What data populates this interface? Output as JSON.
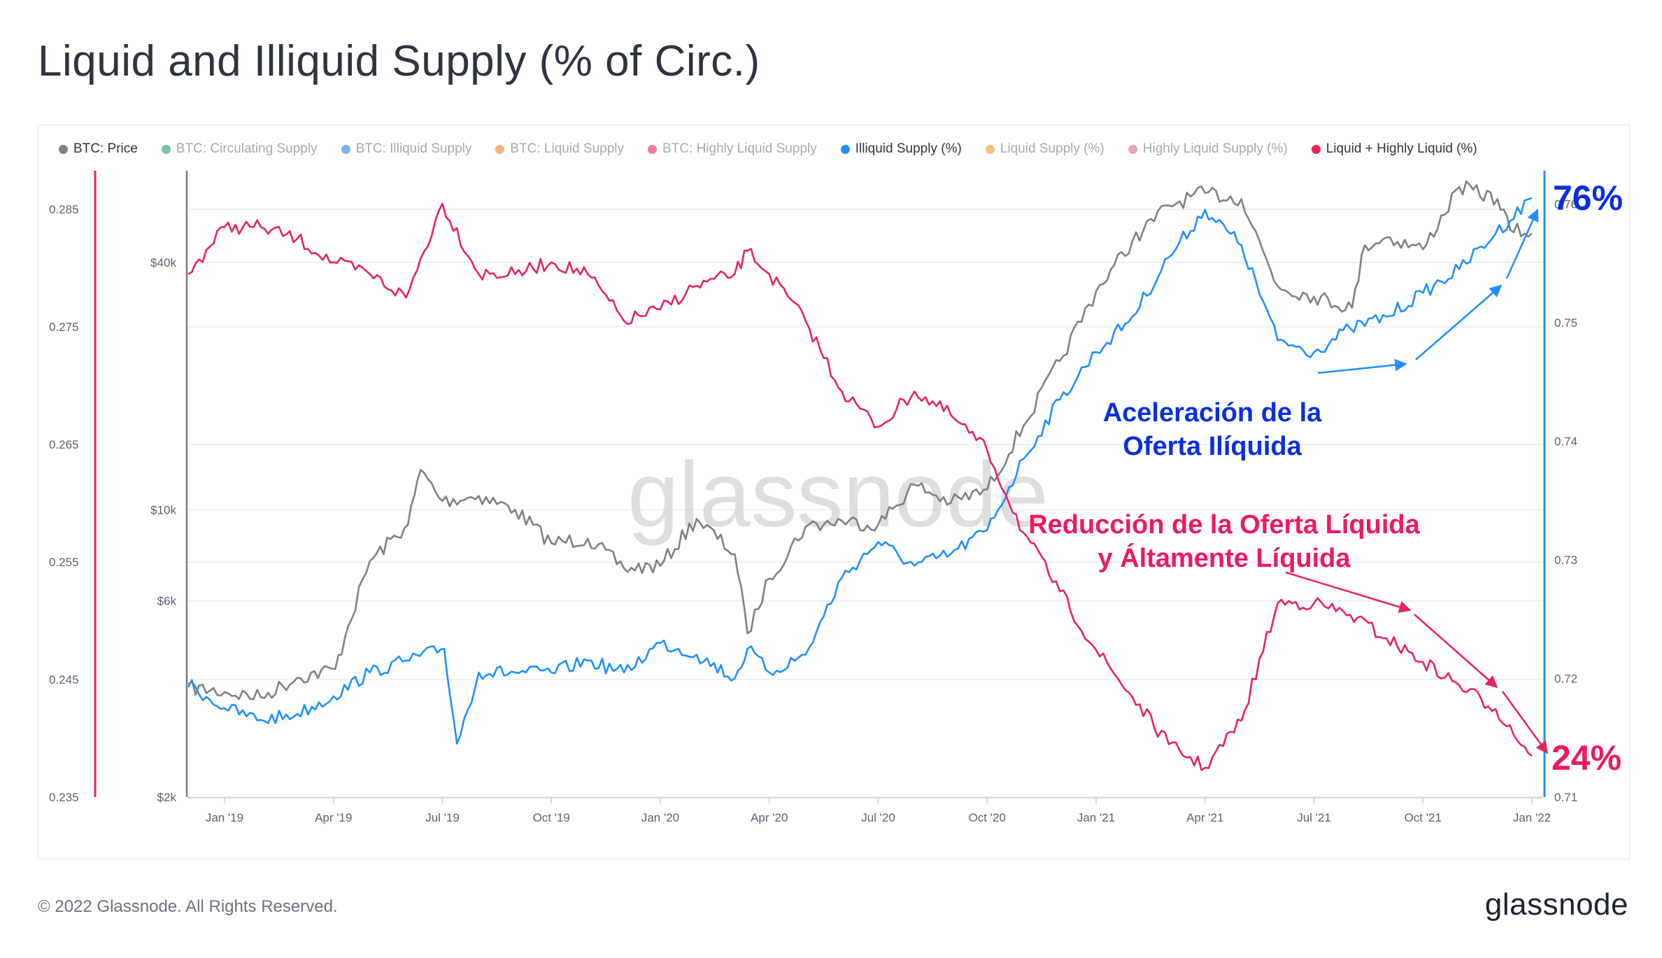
{
  "page": {
    "title": "Liquid and Illiquid Supply (% of Circ.)",
    "copyright": "© 2022 Glassnode. All Rights Reserved.",
    "logo": "glassnode",
    "watermark": "glassnode"
  },
  "legend": [
    {
      "label": "BTC: Price",
      "color": "#808080",
      "active": true
    },
    {
      "label": "BTC: Circulating Supply",
      "color": "#1a9e5c",
      "active": false
    },
    {
      "label": "BTC: Illiquid Supply",
      "color": "#2b7de9",
      "active": false
    },
    {
      "label": "BTC: Liquid Supply",
      "color": "#f07b1e",
      "active": false
    },
    {
      "label": "BTC: Highly Liquid Supply",
      "color": "#e8245b",
      "active": false
    },
    {
      "label": "Illiquid Supply (%)",
      "color": "#1e90ff",
      "active": true
    },
    {
      "label": "Liquid Supply (%)",
      "color": "#f59a2a",
      "active": false
    },
    {
      "label": "Highly Liquid Supply (%)",
      "color": "#e0608a",
      "active": false
    },
    {
      "label": "Liquid + Highly Liquid (%)",
      "color": "#e8245b",
      "active": true
    }
  ],
  "colors": {
    "price": "#808080",
    "illiquid": "#1e90ff",
    "liquid": "#e8245b",
    "annotation_blue": "#0a2fe0",
    "annotation_red": "#ec1a63",
    "grid": "#ebedf0",
    "tick": "#5b6170"
  },
  "chart_data": {
    "type": "line",
    "x_axis": {
      "ticks": [
        "Jan '19",
        "Apr '19",
        "Jul '19",
        "Oct '19",
        "Jan '20",
        "Apr '20",
        "Jul '20",
        "Oct '20",
        "Jan '21",
        "Apr '21",
        "Jul '21",
        "Oct '21",
        "Jan '22"
      ],
      "range": [
        "Dec '18",
        "Jan '22"
      ]
    },
    "y_axes": {
      "left": {
        "series": "Liquid + Highly Liquid (%)",
        "ticks": [
          "0.285",
          "0.275",
          "0.265",
          "0.255",
          "0.245",
          "0.235"
        ],
        "range": [
          0.235,
          0.289
        ]
      },
      "price": {
        "series": "BTC: Price",
        "scale": "log",
        "ticks": [
          "$40k",
          "$10k",
          "$6k",
          "$2k"
        ],
        "tick_values": [
          40000,
          10000,
          6000,
          2000
        ],
        "range": [
          2000,
          70000
        ]
      },
      "right": {
        "series": "Illiquid Supply (%)",
        "ticks": [
          "0.76",
          "0.75",
          "0.74",
          "0.73",
          "0.72",
          "0.71"
        ],
        "range": [
          0.71,
          0.7635
        ]
      }
    },
    "grid": true,
    "legend_position": "top",
    "series": [
      {
        "name": "BTC: Price",
        "axis": "price",
        "points": [
          [
            "Dec '18",
            3700
          ],
          [
            "Jan '19",
            3600
          ],
          [
            "Feb '19",
            3500
          ],
          [
            "Mar '19",
            3900
          ],
          [
            "Apr '19",
            4100
          ],
          [
            "Apr '19",
            5200
          ],
          [
            "May '19",
            7500
          ],
          [
            "Jun '19",
            9200
          ],
          [
            "Jun '19",
            12500
          ],
          [
            "Jul '19",
            10500
          ],
          [
            "Aug '19",
            10800
          ],
          [
            "Sep '19",
            10000
          ],
          [
            "Oct '19",
            8300
          ],
          [
            "Nov '19",
            8500
          ],
          [
            "Dec '19",
            7200
          ],
          [
            "Jan '20",
            7300
          ],
          [
            "Feb '20",
            9500
          ],
          [
            "Mar '20",
            7800
          ],
          [
            "Mar '20",
            5000
          ],
          [
            "Apr '20",
            6800
          ],
          [
            "May '20",
            9100
          ],
          [
            "Jun '20",
            9400
          ],
          [
            "Jul '20",
            9200
          ],
          [
            "Aug '20",
            11500
          ],
          [
            "Sep '20",
            10400
          ],
          [
            "Oct '20",
            11200
          ],
          [
            "Nov '20",
            16000
          ],
          [
            "Dec '20",
            23000
          ],
          [
            "Jan '21",
            34000
          ],
          [
            "Feb '21",
            45000
          ],
          [
            "Mar '21",
            55000
          ],
          [
            "Apr '21",
            59000
          ],
          [
            "May '21",
            57000
          ],
          [
            "Jun '21",
            35000
          ],
          [
            "Jul '21",
            33000
          ],
          [
            "Aug '21",
            31000
          ],
          [
            "Aug '21",
            44000
          ],
          [
            "Sep '21",
            46000
          ],
          [
            "Oct '21",
            43000
          ],
          [
            "Nov '21",
            61000
          ],
          [
            "Dec '21",
            57000
          ],
          [
            "Dec '21",
            48000
          ],
          [
            "Jan '22",
            47000
          ]
        ]
      },
      {
        "name": "Illiquid Supply (%)",
        "axis": "right",
        "points": [
          [
            "Dec '18",
            0.7195
          ],
          [
            "Jan '19",
            0.7175
          ],
          [
            "Feb '19",
            0.7165
          ],
          [
            "Mar '19",
            0.717
          ],
          [
            "Apr '19",
            0.7185
          ],
          [
            "May '19",
            0.7205
          ],
          [
            "Jun '19",
            0.7215
          ],
          [
            "Jul '19",
            0.7225
          ],
          [
            "Jul '19",
            0.7145
          ],
          [
            "Aug '19",
            0.7205
          ],
          [
            "Sep '19",
            0.7205
          ],
          [
            "Oct '19",
            0.7205
          ],
          [
            "Nov '19",
            0.7215
          ],
          [
            "Dec '19",
            0.7205
          ],
          [
            "Jan '20",
            0.723
          ],
          [
            "Feb '20",
            0.722
          ],
          [
            "Mar '20",
            0.72
          ],
          [
            "Mar '20",
            0.7225
          ],
          [
            "Apr '20",
            0.7205
          ],
          [
            "May '20",
            0.722
          ],
          [
            "Jun '20",
            0.7285
          ],
          [
            "Jul '20",
            0.7315
          ],
          [
            "Aug '20",
            0.7295
          ],
          [
            "Sep '20",
            0.7305
          ],
          [
            "Oct '20",
            0.7325
          ],
          [
            "Nov '20",
            0.7385
          ],
          [
            "Dec '20",
            0.7435
          ],
          [
            "Jan '21",
            0.7475
          ],
          [
            "Feb '21",
            0.7505
          ],
          [
            "Mar '21",
            0.7555
          ],
          [
            "Apr '21",
            0.7595
          ],
          [
            "May '21",
            0.7565
          ],
          [
            "Jun '21",
            0.7485
          ],
          [
            "Jul '21",
            0.7475
          ],
          [
            "Aug '21",
            0.7495
          ],
          [
            "Sep '21",
            0.7505
          ],
          [
            "Oct '21",
            0.7525
          ],
          [
            "Nov '21",
            0.7545
          ],
          [
            "Dec '21",
            0.7575
          ],
          [
            "Jan '22",
            0.7605
          ]
        ]
      },
      {
        "name": "Liquid + Highly Liquid (%)",
        "axis": "left",
        "points": [
          [
            "Dec '18",
            0.2795
          ],
          [
            "Jan '19",
            0.2835
          ],
          [
            "Feb '19",
            0.2835
          ],
          [
            "Mar '19",
            0.2825
          ],
          [
            "Apr '19",
            0.2805
          ],
          [
            "May '19",
            0.2795
          ],
          [
            "Jun '19",
            0.2775
          ],
          [
            "Jul '19",
            0.2855
          ],
          [
            "Aug '19",
            0.2795
          ],
          [
            "Sep '19",
            0.2795
          ],
          [
            "Oct '19",
            0.2805
          ],
          [
            "Nov '19",
            0.2795
          ],
          [
            "Dec '19",
            0.2755
          ],
          [
            "Jan '20",
            0.2765
          ],
          [
            "Feb '20",
            0.2785
          ],
          [
            "Mar '20",
            0.2795
          ],
          [
            "Mar '20",
            0.2815
          ],
          [
            "Apr '20",
            0.2795
          ],
          [
            "May '20",
            0.2755
          ],
          [
            "Jun '20",
            0.2695
          ],
          [
            "Jul '20",
            0.2665
          ],
          [
            "Aug '20",
            0.2695
          ],
          [
            "Sep '20",
            0.2675
          ],
          [
            "Oct '20",
            0.2645
          ],
          [
            "Nov '20",
            0.2575
          ],
          [
            "Dec '20",
            0.2525
          ],
          [
            "Jan '21",
            0.2475
          ],
          [
            "Feb '21",
            0.2435
          ],
          [
            "Mar '21",
            0.2395
          ],
          [
            "Apr '21",
            0.2375
          ],
          [
            "May '21",
            0.2415
          ],
          [
            "Jun '21",
            0.2515
          ],
          [
            "Jul '21",
            0.2515
          ],
          [
            "Aug '21",
            0.2505
          ],
          [
            "Sep '21",
            0.2485
          ],
          [
            "Oct '21",
            0.2465
          ],
          [
            "Nov '21",
            0.2445
          ],
          [
            "Dec '21",
            0.2425
          ],
          [
            "Jan '22",
            0.2385
          ]
        ]
      }
    ],
    "annotations": [
      {
        "id": "illiquid_title",
        "lines": [
          "Aceleración de la",
          "Oferta Ilíquida"
        ],
        "color": "#0a2fe0"
      },
      {
        "id": "liquid_title",
        "lines": [
          "Reducción de la Oferta Líquida",
          "y Áltamente Líquida"
        ],
        "color": "#ec1a63"
      },
      {
        "id": "illiquid_value",
        "text": "76%",
        "color": "#0a2fe0"
      },
      {
        "id": "liquid_value",
        "text": "24%",
        "color": "#ec1a63"
      }
    ]
  }
}
